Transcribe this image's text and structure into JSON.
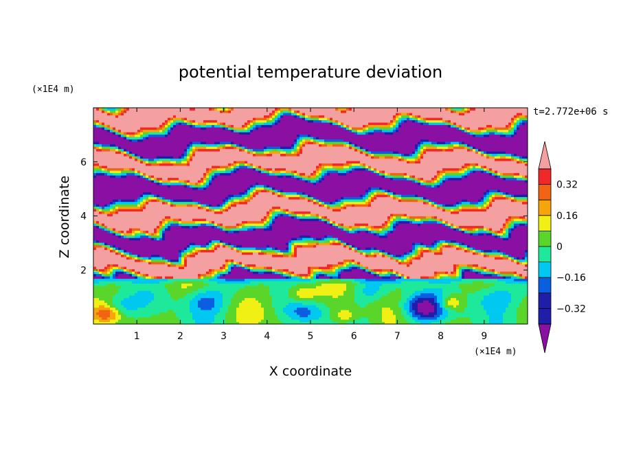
{
  "chart_data": {
    "type": "heatmap",
    "title": "potential temperature deviation",
    "xlabel": "X coordinate",
    "ylabel": "Z coordinate",
    "x_unit": "(×1E4 m)",
    "y_unit": "(×1E4 m)",
    "time_label": "t=2.772e+06 s",
    "xlim": [
      0,
      10
    ],
    "ylim": [
      0,
      8
    ],
    "x_ticks": [
      "1",
      "2",
      "3",
      "4",
      "5",
      "6",
      "7",
      "8",
      "9"
    ],
    "y_ticks": [
      "2",
      "4",
      "6"
    ],
    "colorbar": {
      "levels": [
        -0.4,
        -0.32,
        -0.24,
        -0.16,
        -0.08,
        0,
        0.08,
        0.16,
        0.24,
        0.32,
        0.4
      ],
      "colors": [
        "#8a0fa3",
        "#1e1ea8",
        "#0a5fe0",
        "#00c8f0",
        "#1ee89a",
        "#5ad62a",
        "#f0f014",
        "#f5a50a",
        "#f06414",
        "#f02828",
        "#f5a0a0"
      ],
      "labels": [
        "0.32",
        "0.16",
        "0",
        "−0.16",
        "−0.32"
      ],
      "label_values": [
        0.32,
        0.16,
        0,
        -0.16,
        -0.32
      ],
      "extend": "both"
    },
    "field_description": "boundary layer z<1.8 dominated by near-zero (green/yellow) with cyan/blue eddies; upper layers z>2 alternate strongly between pink (>0.4) and purple (<-0.4) bands"
  }
}
